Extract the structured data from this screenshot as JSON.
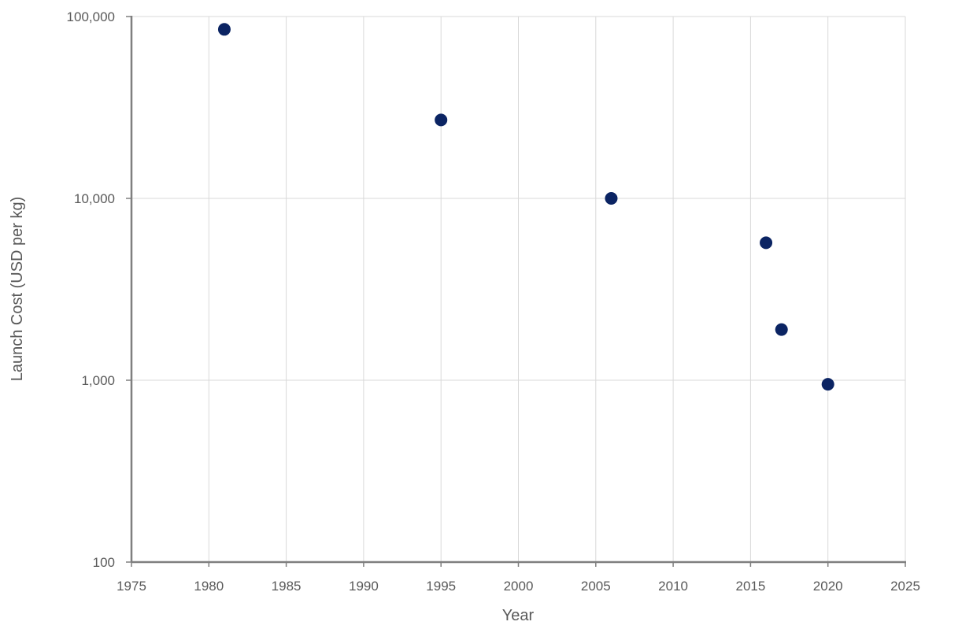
{
  "chart_data": {
    "type": "scatter",
    "title": "",
    "xlabel": "Year",
    "ylabel": "Launch Cost (USD per kg)",
    "xlim": [
      1975,
      2025
    ],
    "ylim": [
      100,
      100000
    ],
    "yscale": "log",
    "grid": true,
    "legend": "none",
    "x_ticks": [
      1975,
      1980,
      1985,
      1990,
      1995,
      2000,
      2005,
      2010,
      2015,
      2020,
      2025
    ],
    "x_tick_labels": [
      "1975",
      "1980",
      "1985",
      "1990",
      "1995",
      "2000",
      "2005",
      "2010",
      "2015",
      "2020",
      "2025"
    ],
    "y_ticks": [
      100,
      1000,
      10000,
      100000
    ],
    "y_tick_labels": [
      "100",
      "1,000",
      "10,000",
      "100,000"
    ],
    "marker_color": "#0b2463",
    "series": [
      {
        "x": [
          1981,
          1995,
          2006,
          2016,
          2017,
          2020
        ],
        "y": [
          85000,
          27000,
          10000,
          5700,
          1900,
          950
        ]
      }
    ]
  }
}
